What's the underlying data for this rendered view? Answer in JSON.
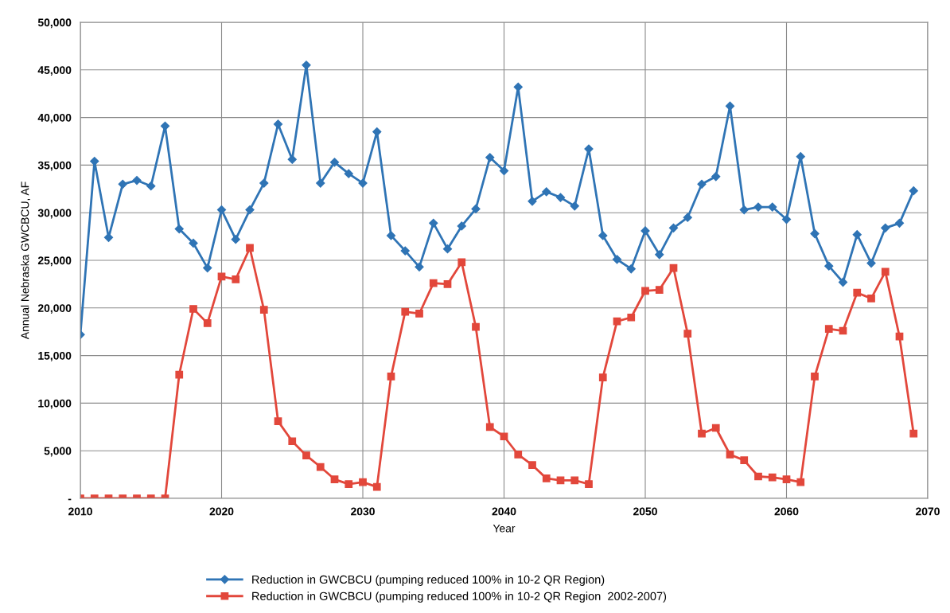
{
  "chart_data": {
    "type": "line",
    "xlabel": "Year",
    "ylabel": "Annual Nebraska GWCBCU, AF",
    "x": [
      2010,
      2011,
      2012,
      2013,
      2014,
      2015,
      2016,
      2017,
      2018,
      2019,
      2020,
      2021,
      2022,
      2023,
      2024,
      2025,
      2026,
      2027,
      2028,
      2029,
      2030,
      2031,
      2032,
      2033,
      2034,
      2035,
      2036,
      2037,
      2038,
      2039,
      2040,
      2041,
      2042,
      2043,
      2044,
      2045,
      2046,
      2047,
      2048,
      2049,
      2050,
      2051,
      2052,
      2053,
      2054,
      2055,
      2056,
      2057,
      2058,
      2059,
      2060,
      2061,
      2062,
      2063,
      2064,
      2065,
      2066,
      2067,
      2068,
      2069
    ],
    "series": [
      {
        "name": "Reduction in GWCBCU (pumping reduced 100% in 10-2 QR Region)",
        "color": "#2f74b5",
        "marker": "diamond",
        "values": [
          17200,
          35400,
          27400,
          33000,
          33400,
          32800,
          39100,
          28300,
          26800,
          24200,
          30300,
          27200,
          30300,
          33100,
          39300,
          35600,
          45500,
          33100,
          35300,
          34100,
          33100,
          38500,
          27600,
          26000,
          24300,
          28900,
          26200,
          28600,
          30400,
          35800,
          34400,
          43200,
          31200,
          32200,
          31600,
          30700,
          36700,
          27600,
          25100,
          24100,
          28100,
          25600,
          28400,
          29500,
          33000,
          33800,
          41200,
          30300,
          30600,
          30600,
          29300,
          35900,
          27800,
          24400,
          22700,
          27700,
          24700,
          28400,
          28900,
          32300
        ]
      },
      {
        "name": "Reduction in GWCBCU (pumping reduced 100% in 10-2 QR Region  2002-2007)",
        "color": "#e2473b",
        "marker": "square",
        "values": [
          0,
          0,
          0,
          0,
          0,
          0,
          0,
          13000,
          19900,
          18400,
          23300,
          23000,
          26300,
          19800,
          8100,
          6000,
          4500,
          3300,
          2000,
          1500,
          1700,
          1200,
          12800,
          19600,
          19400,
          22600,
          22500,
          24800,
          18000,
          7500,
          6500,
          4600,
          3500,
          2100,
          1900,
          1900,
          1500,
          12700,
          18600,
          19000,
          21800,
          21900,
          24200,
          17300,
          6800,
          7400,
          4600,
          4000,
          2300,
          2200,
          2000,
          1700,
          12800,
          17800,
          17600,
          21600,
          21000,
          23800,
          17000,
          6800
        ]
      }
    ],
    "xlim": [
      2010,
      2070
    ],
    "xticks": [
      2010,
      2020,
      2030,
      2040,
      2050,
      2060,
      2070
    ],
    "ylim": [
      0,
      50000
    ],
    "yticks": [
      {
        "value": 0,
        "label": "-"
      },
      {
        "value": 5000,
        "label": "5,000"
      },
      {
        "value": 10000,
        "label": "10,000"
      },
      {
        "value": 15000,
        "label": "15,000"
      },
      {
        "value": 20000,
        "label": "20,000"
      },
      {
        "value": 25000,
        "label": "25,000"
      },
      {
        "value": 30000,
        "label": "30,000"
      },
      {
        "value": 35000,
        "label": "35,000"
      },
      {
        "value": 40000,
        "label": "40,000"
      },
      {
        "value": 45000,
        "label": "45,000"
      },
      {
        "value": 50000,
        "label": "50,000"
      }
    ],
    "grid": true,
    "legend": "bottom",
    "line_style": "solid"
  }
}
